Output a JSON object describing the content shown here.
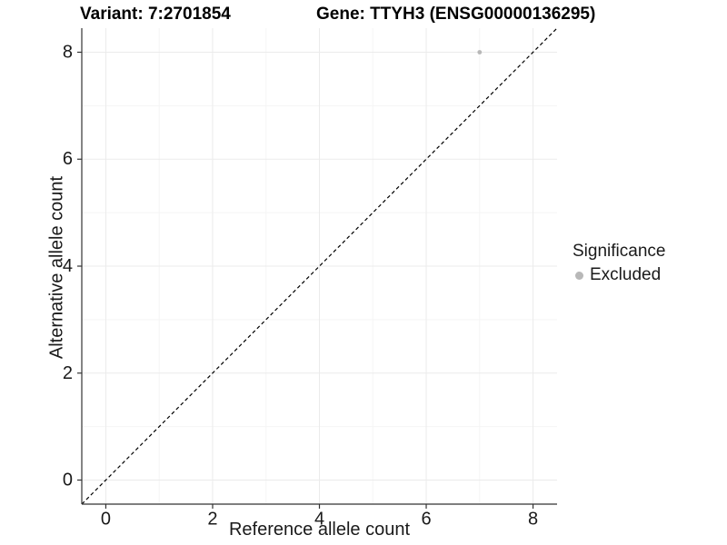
{
  "chart_data": {
    "type": "scatter",
    "titles": {
      "variant": "Variant: 7:2701854",
      "gene": "Gene: TTYH3 (ENSG00000136295)"
    },
    "xlabel": "Reference allele count",
    "ylabel": "Alternative allele count",
    "xlim": [
      -0.45,
      8.45
    ],
    "ylim": [
      -0.45,
      8.45
    ],
    "xticks": [
      0,
      2,
      4,
      6,
      8
    ],
    "yticks": [
      0,
      2,
      4,
      6,
      8
    ],
    "xminor": [
      1,
      3,
      5,
      7
    ],
    "yminor": [
      1,
      3,
      5,
      7
    ],
    "grid": "major+minor",
    "series": [
      {
        "name": "Excluded",
        "color": "#b8b8b8",
        "points": [
          {
            "x": 7,
            "y": 8
          }
        ]
      }
    ],
    "reference_line": {
      "equation": "y = x",
      "style": "dashed",
      "color": "#000000"
    },
    "legend": {
      "title": "Significance",
      "position": "right",
      "items": [
        {
          "label": "Excluded",
          "color": "#b8b8b8",
          "marker": "circle"
        }
      ]
    },
    "colors": {
      "background": "#ffffff",
      "grid_major": "#ebebeb",
      "grid_minor": "#f5f5f5",
      "axis_line": "#333333",
      "tick_text": "#1a1a1a"
    }
  }
}
